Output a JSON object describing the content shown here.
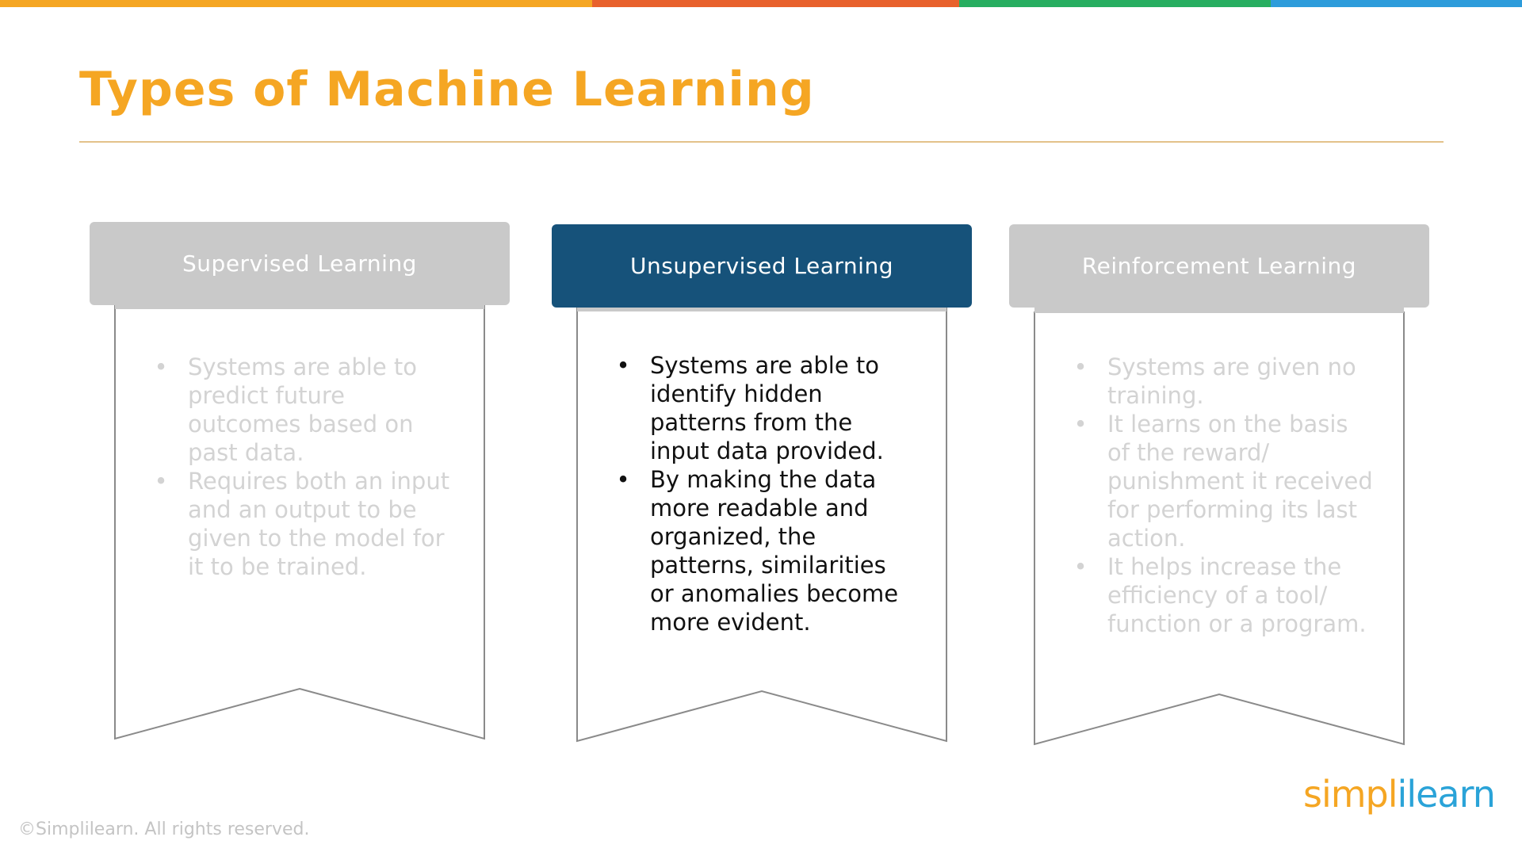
{
  "slide": {
    "title": "Types of Machine Learning",
    "top_bar_colors": [
      "#f5a623",
      "#e8612c",
      "#27ae60",
      "#2d9cdb"
    ],
    "title_color": "#f5a623"
  },
  "cards": [
    {
      "heading": "Supervised Learning",
      "state": "faded",
      "header_color": "#c9c9c9",
      "bullet_glyph": "•",
      "bullets": [
        "Systems are able to predict future outcomes based on past data.",
        "Requires both an input and an output to be given to the model for it to be trained."
      ]
    },
    {
      "heading": "Unsupervised Learning",
      "state": "active",
      "header_color": "#16527a",
      "bullet_glyph": "•",
      "bullets": [
        "Systems are able to identify hidden patterns from the input data provided.",
        "By making the data more readable and organized, the patterns, similarities or anomalies become more evident."
      ]
    },
    {
      "heading": "Reinforcement Learning",
      "state": "faded",
      "header_color": "#c9c9c9",
      "bullet_glyph": "•",
      "bullets": [
        "Systems are given no training.",
        "It learns on the basis of the reward/ punishment it received for performing its last action.",
        "It helps increase the efficiency of a tool/ function or a program."
      ]
    }
  ],
  "footer": {
    "copyright": "©Simplilearn. All rights reserved.",
    "logo_part1": "simpl",
    "logo_part2": "ilearn",
    "logo_colors": [
      "#f5a623",
      "#2aa3d8"
    ]
  }
}
